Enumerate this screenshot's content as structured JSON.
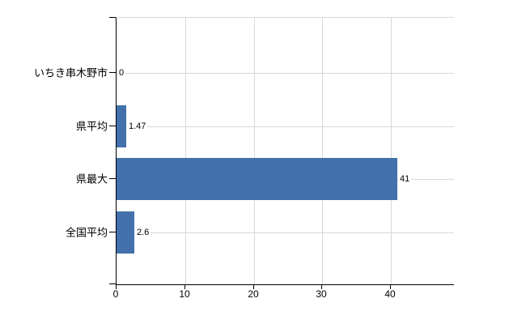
{
  "chart_data": {
    "type": "bar",
    "orientation": "horizontal",
    "title": "",
    "categories": [
      "いちき串木野市",
      "県平均",
      "県最大",
      "全国平均"
    ],
    "values": [
      0,
      1.47,
      41,
      2.6
    ],
    "value_labels": [
      "0",
      "1.47",
      "41",
      "2.6"
    ],
    "x_ticks": [
      0,
      10,
      20,
      30,
      40
    ],
    "x_tick_labels": [
      "0",
      "10",
      "20",
      "30",
      "40"
    ],
    "xlim": [
      0,
      49.2
    ],
    "grid": "on",
    "legend": "none",
    "colors": {
      "bar": "#4271ab",
      "grid": "#d8d8d8",
      "axis": "#000000",
      "text": "#000000",
      "background": "#ffffff"
    }
  }
}
